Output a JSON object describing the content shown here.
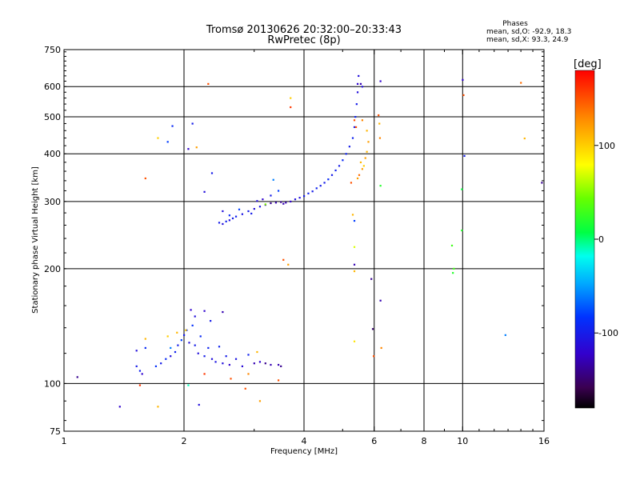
{
  "chart_data": {
    "type": "scatter",
    "title": "Tromsø 20130626 20:32:00–20:33:43",
    "subtitle": "RwPretec (8p)",
    "xlabel": "Frequency [MHz]",
    "ylabel": "Stationary phase Virtual Height [km]",
    "x_scale": "log",
    "y_scale": "log",
    "xlim": [
      1,
      16
    ],
    "ylim": [
      75,
      750
    ],
    "x_ticks": [
      1,
      2,
      4,
      6,
      8,
      10,
      16
    ],
    "x_tick_labels": [
      "1",
      "2",
      "4",
      "6",
      "8",
      "10",
      "16"
    ],
    "y_ticks": [
      75,
      100,
      200,
      300,
      400,
      500,
      600,
      750
    ],
    "y_tick_labels": [
      "75",
      "100",
      "200",
      "300",
      "400",
      "500",
      "600",
      "750"
    ],
    "x_grid": [
      2,
      4,
      6,
      8,
      10
    ],
    "y_grid": [
      100,
      200,
      300,
      400,
      500,
      600
    ],
    "grid": true,
    "legend": {
      "title": "Phases",
      "entries": [
        "mean, sd,O: -92.9, 18.3",
        "mean, sd,X:  93.3, 24.9"
      ],
      "placement": "top-right"
    },
    "colorbar": {
      "label": "[deg]",
      "range": [
        -180,
        180
      ],
      "ticks": [
        100,
        0,
        -100
      ],
      "tick_labels": [
        "100",
        "0",
        "-100"
      ],
      "colormap": "rainbow"
    },
    "series": [
      {
        "points": [
          [
            1.08,
            104,
            -140
          ],
          [
            1.38,
            87,
            -120
          ],
          [
            1.52,
            111,
            -100
          ],
          [
            1.55,
            108,
            -95
          ],
          [
            1.57,
            106,
            -120
          ],
          [
            1.6,
            124,
            -90
          ],
          [
            1.52,
            122,
            -110
          ],
          [
            1.7,
            111,
            -85
          ],
          [
            1.75,
            113,
            -100
          ],
          [
            1.8,
            116,
            -90
          ],
          [
            1.85,
            118,
            -110
          ],
          [
            1.9,
            121,
            -95
          ],
          [
            1.93,
            126,
            -100
          ],
          [
            1.97,
            130,
            -80
          ],
          [
            2.0,
            134,
            -100
          ],
          [
            2.03,
            138,
            -90
          ],
          [
            2.06,
            128,
            -110
          ],
          [
            2.1,
            142,
            -85
          ],
          [
            2.13,
            126,
            -100
          ],
          [
            2.17,
            120,
            -110
          ],
          [
            2.2,
            133,
            -90
          ],
          [
            2.25,
            118,
            -100
          ],
          [
            2.3,
            124,
            -95
          ],
          [
            2.35,
            116,
            -110
          ],
          [
            2.4,
            114,
            -105
          ],
          [
            2.45,
            125,
            -95
          ],
          [
            2.5,
            113,
            -110
          ],
          [
            2.55,
            118,
            -100
          ],
          [
            2.6,
            112,
            -120
          ],
          [
            2.7,
            116,
            -105
          ],
          [
            2.8,
            111,
            -115
          ],
          [
            2.9,
            119,
            -95
          ],
          [
            3.0,
            113,
            -130
          ],
          [
            3.1,
            114,
            -120
          ],
          [
            3.2,
            113,
            -140
          ],
          [
            3.3,
            112,
            -130
          ],
          [
            3.45,
            112,
            -130
          ],
          [
            3.5,
            111,
            -140
          ],
          [
            2.08,
            156,
            -120
          ],
          [
            2.25,
            155,
            -120
          ],
          [
            2.5,
            154,
            -130
          ],
          [
            2.13,
            150,
            -110
          ],
          [
            2.33,
            146,
            -100
          ],
          [
            1.85,
            124,
            -60
          ],
          [
            1.82,
            133,
            100
          ],
          [
            1.92,
            136,
            110
          ],
          [
            2.02,
            138,
            100
          ],
          [
            1.6,
            131,
            110
          ],
          [
            2.25,
            106,
            160
          ],
          [
            2.9,
            106,
            130
          ],
          [
            3.05,
            121,
            110
          ],
          [
            1.72,
            87,
            110
          ],
          [
            2.62,
            103,
            150
          ],
          [
            2.05,
            99,
            -10
          ],
          [
            2.18,
            88,
            -110
          ],
          [
            1.55,
            99,
            160
          ],
          [
            2.85,
            97,
            150
          ],
          [
            3.1,
            90,
            120
          ],
          [
            3.45,
            102,
            150
          ],
          [
            2.45,
            264,
            -100
          ],
          [
            2.5,
            262,
            -110
          ],
          [
            2.55,
            266,
            -95
          ],
          [
            2.6,
            268,
            -110
          ],
          [
            2.65,
            271,
            -100
          ],
          [
            2.7,
            274,
            -95
          ],
          [
            2.8,
            278,
            -105
          ],
          [
            2.9,
            283,
            -100
          ],
          [
            3.0,
            287,
            -110
          ],
          [
            3.1,
            291,
            -105
          ],
          [
            3.2,
            294,
            -130
          ],
          [
            3.3,
            297,
            -140
          ],
          [
            3.4,
            298,
            -130
          ],
          [
            3.5,
            299,
            -140
          ],
          [
            3.6,
            298,
            -130
          ],
          [
            3.7,
            300,
            -120
          ],
          [
            3.8,
            304,
            -110
          ],
          [
            3.9,
            307,
            -110
          ],
          [
            4.0,
            310,
            -100
          ],
          [
            4.1,
            315,
            -95
          ],
          [
            4.2,
            319,
            -100
          ],
          [
            4.3,
            325,
            -95
          ],
          [
            4.4,
            330,
            -100
          ],
          [
            4.5,
            336,
            -100
          ],
          [
            4.6,
            343,
            -90
          ],
          [
            4.7,
            352,
            -100
          ],
          [
            4.8,
            362,
            -95
          ],
          [
            4.9,
            372,
            -100
          ],
          [
            5.0,
            385,
            -90
          ],
          [
            5.1,
            400,
            -95
          ],
          [
            5.2,
            418,
            -100
          ],
          [
            5.3,
            440,
            -95
          ],
          [
            5.35,
            470,
            -100
          ],
          [
            5.38,
            500,
            -95
          ],
          [
            5.42,
            540,
            -100
          ],
          [
            5.45,
            580,
            -110
          ],
          [
            5.45,
            610,
            -120
          ],
          [
            5.48,
            640,
            -110
          ],
          [
            2.5,
            283,
            -110
          ],
          [
            2.6,
            276,
            -90
          ],
          [
            2.75,
            286,
            -80
          ],
          [
            2.95,
            279,
            -100
          ],
          [
            3.05,
            301,
            -110
          ],
          [
            3.15,
            304,
            -120
          ],
          [
            3.3,
            311,
            -100
          ],
          [
            3.45,
            320,
            -80
          ],
          [
            3.55,
            296,
            -130
          ],
          [
            5.55,
            380,
            110
          ],
          [
            5.6,
            365,
            120
          ],
          [
            5.65,
            372,
            100
          ],
          [
            5.7,
            390,
            120
          ],
          [
            5.75,
            405,
            110
          ],
          [
            5.5,
            352,
            140
          ],
          [
            5.45,
            345,
            120
          ],
          [
            5.25,
            336,
            150
          ],
          [
            5.55,
            610,
            -130
          ],
          [
            5.6,
            600,
            -110
          ],
          [
            5.35,
            490,
            150
          ],
          [
            5.4,
            470,
            150
          ],
          [
            5.6,
            490,
            130
          ],
          [
            5.75,
            460,
            110
          ],
          [
            5.8,
            430,
            120
          ],
          [
            1.6,
            345,
            150
          ],
          [
            1.72,
            440,
            100
          ],
          [
            1.82,
            430,
            -80
          ],
          [
            1.87,
            473,
            -90
          ],
          [
            2.05,
            412,
            -120
          ],
          [
            2.1,
            480,
            -100
          ],
          [
            2.15,
            416,
            120
          ],
          [
            2.25,
            318,
            -110
          ],
          [
            2.35,
            356,
            -100
          ],
          [
            2.3,
            610,
            150
          ],
          [
            3.2,
            295,
            50
          ],
          [
            3.35,
            342,
            -60
          ],
          [
            3.55,
            211,
            150
          ],
          [
            3.65,
            205,
            120
          ],
          [
            3.7,
            530,
            160
          ],
          [
            3.7,
            560,
            100
          ],
          [
            5.3,
            277,
            110
          ],
          [
            5.35,
            267,
            -80
          ],
          [
            5.35,
            228,
            70
          ],
          [
            5.35,
            205,
            -130
          ],
          [
            5.35,
            197,
            110
          ],
          [
            5.35,
            129,
            90
          ],
          [
            5.9,
            188,
            -140
          ],
          [
            5.95,
            139,
            -150
          ],
          [
            5.98,
            118,
            150
          ],
          [
            6.22,
            165,
            -130
          ],
          [
            6.25,
            124,
            130
          ],
          [
            6.22,
            330,
            20
          ],
          [
            6.18,
            480,
            110
          ],
          [
            6.15,
            505,
            150
          ],
          [
            6.2,
            440,
            130
          ],
          [
            6.22,
            620,
            -120
          ],
          [
            9.4,
            230,
            30
          ],
          [
            9.5,
            200,
            30
          ],
          [
            9.45,
            195,
            20
          ],
          [
            10.0,
            625,
            -120
          ],
          [
            10.05,
            570,
            150
          ],
          [
            10.1,
            395,
            -100
          ],
          [
            9.95,
            323,
            10
          ],
          [
            9.95,
            252,
            20
          ],
          [
            12.8,
            134,
            -60
          ],
          [
            14.0,
            614,
            140
          ],
          [
            14.3,
            439,
            110
          ],
          [
            15.8,
            336,
            -140
          ]
        ]
      }
    ]
  }
}
